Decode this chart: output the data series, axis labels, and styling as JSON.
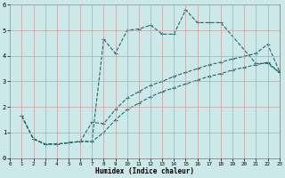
{
  "xlabel": "Humidex (Indice chaleur)",
  "bg_color": "#cce8e8",
  "line_color": "#1a6b6b",
  "xlim": [
    0,
    23
  ],
  "ylim": [
    0,
    6
  ],
  "xticks": [
    0,
    1,
    2,
    3,
    4,
    5,
    6,
    7,
    8,
    9,
    10,
    11,
    12,
    13,
    14,
    15,
    16,
    17,
    18,
    19,
    20,
    21,
    22,
    23
  ],
  "yticks": [
    0,
    1,
    2,
    3,
    4,
    5,
    6
  ],
  "series1_x": [
    1,
    2,
    3,
    4,
    5,
    6,
    7,
    8,
    9,
    10,
    11,
    12,
    13,
    14,
    15,
    16,
    17,
    18,
    21,
    22,
    23
  ],
  "series1_y": [
    1.65,
    0.75,
    0.55,
    0.55,
    0.6,
    0.65,
    0.65,
    4.65,
    4.1,
    5.0,
    5.05,
    5.2,
    4.85,
    4.85,
    5.8,
    5.3,
    5.3,
    5.3,
    3.7,
    3.7,
    3.35
  ],
  "series2_x": [
    1,
    2,
    3,
    4,
    5,
    6,
    7,
    8,
    9,
    10,
    11,
    12,
    13,
    14,
    15,
    16,
    17,
    18,
    19,
    20,
    21,
    22,
    23
  ],
  "series2_y": [
    1.65,
    0.75,
    0.55,
    0.55,
    0.6,
    0.65,
    1.4,
    1.35,
    1.9,
    2.35,
    2.6,
    2.85,
    3.0,
    3.2,
    3.35,
    3.5,
    3.65,
    3.75,
    3.88,
    3.98,
    4.1,
    4.45,
    3.4
  ],
  "series3_x": [
    1,
    2,
    3,
    4,
    5,
    6,
    7,
    8,
    9,
    10,
    11,
    12,
    13,
    14,
    15,
    16,
    17,
    18,
    19,
    20,
    21,
    22,
    23
  ],
  "series3_y": [
    1.65,
    0.75,
    0.55,
    0.55,
    0.6,
    0.65,
    0.65,
    1.0,
    1.5,
    1.9,
    2.15,
    2.4,
    2.6,
    2.75,
    2.9,
    3.05,
    3.2,
    3.3,
    3.45,
    3.55,
    3.65,
    3.75,
    3.35
  ]
}
